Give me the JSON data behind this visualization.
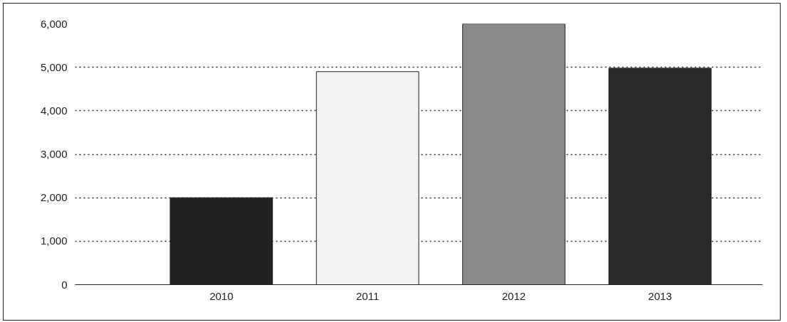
{
  "chart_data": {
    "type": "bar",
    "categories": [
      "2010",
      "2011",
      "2012",
      "2013"
    ],
    "values": [
      2000,
      4900,
      6000,
      4980
    ],
    "colors": [
      "#222222",
      "#f2f2f2",
      "#8a8a8a",
      "#2a2a2a"
    ],
    "ylim": [
      0,
      6000
    ],
    "yticks": [
      {
        "value": 0,
        "label": "0"
      },
      {
        "value": 1000,
        "label": "1,000"
      },
      {
        "value": 2000,
        "label": "2,000"
      },
      {
        "value": 3000,
        "label": "3,000"
      },
      {
        "value": 4000,
        "label": "4,000"
      },
      {
        "value": 5000,
        "label": "5,000"
      },
      {
        "value": 6000,
        "label": "6,000"
      }
    ],
    "grid": "y",
    "line_style": "dotted"
  }
}
